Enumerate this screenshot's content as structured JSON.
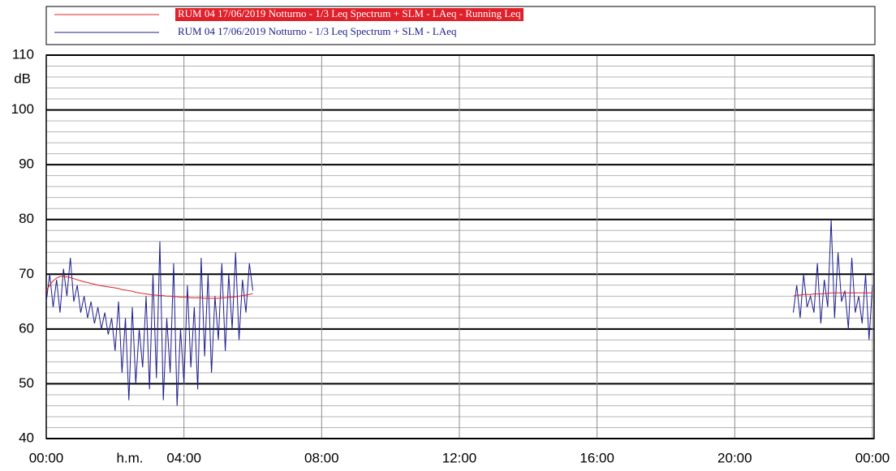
{
  "chart_data": {
    "type": "line",
    "xlabel": "h.m.",
    "ylabel": "dB",
    "xlim": [
      0,
      24
    ],
    "xticks": [
      {
        "value": 0,
        "label": "00:00"
      },
      {
        "value": 4,
        "label": "04:00"
      },
      {
        "value": 8,
        "label": "08:00"
      },
      {
        "value": 12,
        "label": "12:00"
      },
      {
        "value": 16,
        "label": "16:00"
      },
      {
        "value": 20,
        "label": "20:00"
      },
      {
        "value": 24,
        "label": "00:00"
      }
    ],
    "ylim": [
      40,
      110
    ],
    "yticks": [
      40,
      50,
      60,
      70,
      80,
      90,
      100,
      110
    ],
    "yticks_minor": [
      42,
      44,
      46,
      48,
      52,
      54,
      56,
      58,
      62,
      64,
      66,
      68,
      72,
      74,
      76,
      78,
      82,
      84,
      86,
      88,
      92,
      94,
      96,
      98,
      102,
      104,
      106,
      108
    ],
    "grid": true,
    "x": [
      0,
      0.1,
      0.2,
      0.3,
      0.4,
      0.5,
      0.6,
      0.7,
      0.8,
      0.9,
      1,
      1.1,
      1.2,
      1.3,
      1.4,
      1.5,
      1.6,
      1.7,
      1.8,
      1.9,
      2,
      2.1,
      2.2,
      2.3,
      2.4,
      2.5,
      2.6,
      2.7,
      2.8,
      2.9,
      3,
      3.1,
      3.2,
      3.3,
      3.4,
      3.5,
      3.6,
      3.7,
      3.8,
      3.9,
      4,
      4.1,
      4.2,
      4.3,
      4.4,
      4.5,
      4.6,
      4.7,
      4.8,
      4.9,
      5,
      5.1,
      5.2,
      5.3,
      5.4,
      5.5,
      5.6,
      5.7,
      5.8,
      5.9,
      6,
      12,
      21.7,
      21.8,
      21.9,
      22,
      22.1,
      22.2,
      22.3,
      22.4,
      22.5,
      22.6,
      22.7,
      22.8,
      22.9,
      23,
      23.1,
      23.2,
      23.3,
      23.4,
      23.5,
      23.6,
      23.7,
      23.8,
      23.9,
      24
    ],
    "series": [
      {
        "name": "RUM 04 17/06/2019 Notturno - 1/3 Leq Spectrum + SLM - LAeq - Running Leq",
        "color": "#e0202a",
        "values": [
          67,
          68,
          68.8,
          69.3,
          69.6,
          69.6,
          69.5,
          69.4,
          69.2,
          69,
          68.8,
          68.6,
          68.5,
          68.3,
          68.2,
          68,
          67.9,
          67.8,
          67.7,
          67.6,
          67.5,
          67.4,
          67.2,
          67.1,
          67,
          66.9,
          66.7,
          66.6,
          66.5,
          66.4,
          66.3,
          66.2,
          66.2,
          66.1,
          66.1,
          66,
          66,
          65.9,
          65.9,
          65.8,
          65.8,
          65.8,
          65.7,
          65.7,
          65.7,
          65.7,
          65.6,
          65.6,
          65.6,
          65.6,
          65.6,
          65.7,
          65.7,
          65.8,
          65.8,
          65.9,
          66,
          66.1,
          66.2,
          66.3,
          66.5,
          null,
          66,
          66.2,
          66.2,
          66.3,
          66.3,
          66.3,
          66.4,
          66.4,
          66.4,
          66.5,
          66.5,
          66.6,
          66.6,
          66.6,
          66.6,
          66.6,
          66.6,
          66.6,
          66.6,
          66.6,
          66.6,
          66.6,
          66.6,
          66.6
        ]
      },
      {
        "name": "RUM 04 17/06/2019 Notturno - 1/3 Leq Spectrum + SLM - LAeq",
        "color": "#1c1c8c",
        "values": [
          65,
          70,
          64,
          69,
          63,
          71,
          66,
          73,
          65,
          68,
          63,
          66,
          62,
          65,
          61,
          64,
          60,
          63,
          59,
          62,
          56,
          65,
          52,
          62,
          47,
          64,
          50,
          60,
          53,
          66,
          49,
          70,
          51,
          76,
          47,
          62,
          52,
          72,
          46,
          60,
          50,
          68,
          53,
          64,
          49,
          73,
          55,
          70,
          52,
          66,
          58,
          72,
          56,
          70,
          60,
          74,
          58,
          69,
          63,
          72,
          67,
          null,
          63,
          68,
          62,
          70,
          64,
          66,
          63,
          72,
          61,
          69,
          64,
          80,
          62,
          74,
          65,
          67,
          60,
          73,
          63,
          66,
          61,
          70,
          58,
          68
        ]
      }
    ]
  }
}
